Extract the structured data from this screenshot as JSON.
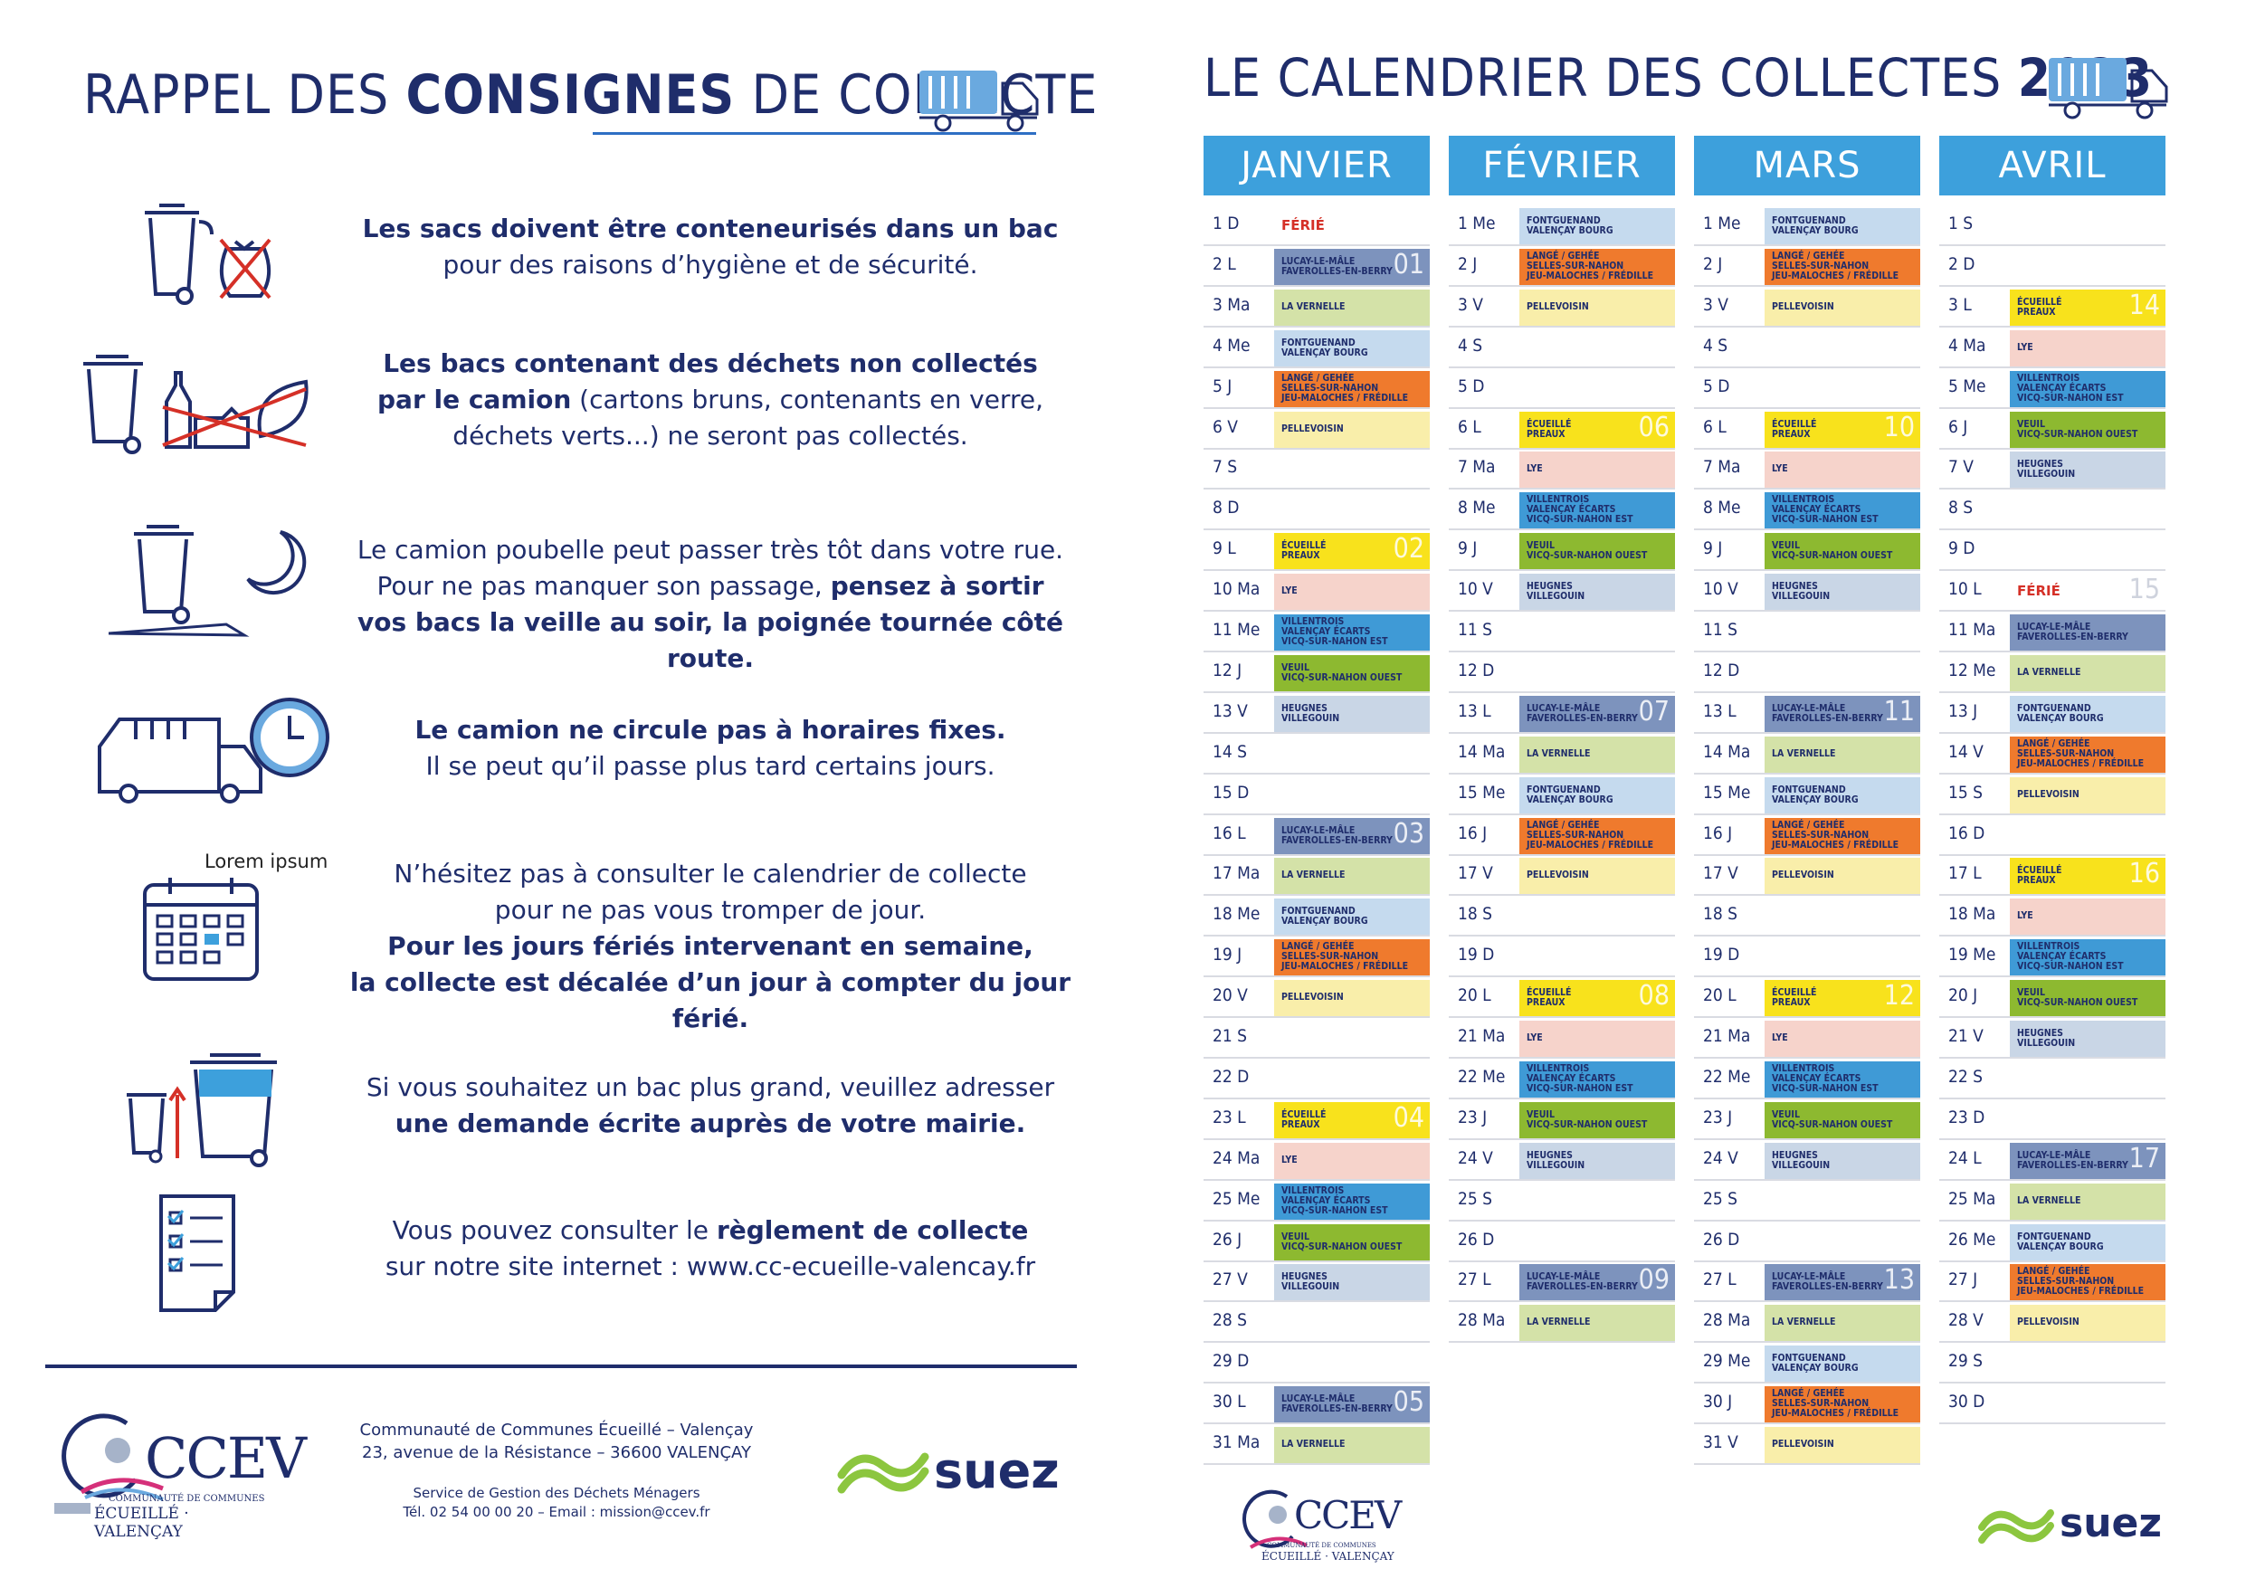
{
  "left": {
    "title_pre": "RAPPEL DES ",
    "title_bold": "CONSIGNES",
    "title_post": " DE COLLECTE",
    "rows": [
      {
        "l1b": "Les sacs doivent être conteneurisés dans un bac",
        "l2": "pour des raisons d’hygiène et de sécurité."
      },
      {
        "l1b": "Les bacs contenant des déchets non collectés",
        "l2b": "par le camion",
        "l2": " (cartons bruns, contenants en verre,",
        "l3": "déchets verts...) ne seront pas collectés."
      },
      {
        "l1": "Le camion poubelle peut passer très tôt dans votre rue.",
        "l2": "Pour ne pas manquer son passage, ",
        "l2b": "pensez à sortir",
        "l3b": "vos bacs la veille au soir, la poignée tournée côté route."
      },
      {
        "l1b": "Le camion ne circule pas à horaires fixes.",
        "l2": "Il se peut qu’il passe plus tard certains jours."
      },
      {
        "icon_label": "Lorem ipsum",
        "l1": "N’hésitez pas à consulter le calendrier de collecte",
        "l2": "pour ne pas vous tromper de jour.",
        "l3b": "Pour les jours fériés intervenant en semaine,",
        "l4b": "la collecte est décalée d’un jour à compter du jour férié."
      },
      {
        "l1": "Si vous souhaitez un bac plus grand, veuillez adresser",
        "l2b": "une demande écrite auprès de votre mairie."
      },
      {
        "l1": "Vous pouvez consulter le ",
        "l1b": "règlement de collecte",
        "l2": "sur notre site internet : www.cc-ecueille-valencay.fr"
      }
    ],
    "footer": {
      "addr1": "Communauté de Communes Écueillé – Valençay",
      "addr2": "23, avenue de la Résistance – 36600 VALENÇAY",
      "svc1": "Service de Gestion des Déchets Ménagers",
      "svc2": "Tél. 02 54 00 00 20 – Email : mission@ccev.fr"
    },
    "logo": {
      "letters": "CCEV",
      "sub1": "COMMUNAUTÉ DE COMMUNES",
      "sub2": "ÉCUEILLÉ · VALENÇAY"
    },
    "suez": "suez"
  },
  "right": {
    "title_pre": "LE CALENDRIER DES COLLECTES ",
    "title_year": "2023",
    "colors": {
      "lucay": "#7d93bd",
      "vernelle": "#d4e2a8",
      "font": "#c5daee",
      "lange": "#ef7a2d",
      "pelle": "#f9eeaa",
      "ecueille": "#f8e21c",
      "lye": "#f6d3cb",
      "villen": "#3f9ad6",
      "veuil": "#8db930",
      "heugnes": "#c9d6e6",
      "blank": "#ffffff"
    },
    "labels": {
      "lucay": "LUCAY-LE-MÂLE\nFAVEROLLES-EN-BERRY",
      "vernelle": "LA VERNELLE",
      "font": "FONTGUENAND\nVALENÇAY BOURG",
      "lange": "LANGÉ / GEHÉE\nSELLES-SUR-NAHON\nJEU-MALOCHES / FRÉDILLE",
      "pelle": "PELLEVOISIN",
      "ecueille": "ÉCUEILLÉ\nPREAUX",
      "lye": "LYE",
      "villen": "VILLENTROIS\nVALENÇAY ÉCARTS\nVICQ-SUR-NAHON EST",
      "veuil": "VEUIL\nVICQ-SUR-NAHON OUEST",
      "heugnes": "HEUGNES\nVILLEGOUIN"
    },
    "ferie_label": "FÉRIÉ",
    "months": [
      {
        "name": "JANVIER",
        "days": [
          [
            "1 D",
            "ferie",
            ""
          ],
          [
            "2 L",
            "lucay",
            "01"
          ],
          [
            "3 Ma",
            "vernelle",
            ""
          ],
          [
            "4 Me",
            "font",
            ""
          ],
          [
            "5 J",
            "lange",
            ""
          ],
          [
            "6 V",
            "pelle",
            ""
          ],
          [
            "7 S",
            "",
            ""
          ],
          [
            "8 D",
            "",
            ""
          ],
          [
            "9 L",
            "ecueille",
            "02"
          ],
          [
            "10 Ma",
            "lye",
            ""
          ],
          [
            "11 Me",
            "villen",
            ""
          ],
          [
            "12 J",
            "veuil",
            ""
          ],
          [
            "13 V",
            "heugnes",
            ""
          ],
          [
            "14 S",
            "",
            ""
          ],
          [
            "15 D",
            "",
            ""
          ],
          [
            "16 L",
            "lucay",
            "03"
          ],
          [
            "17 Ma",
            "vernelle",
            ""
          ],
          [
            "18 Me",
            "font",
            ""
          ],
          [
            "19 J",
            "lange",
            ""
          ],
          [
            "20 V",
            "pelle",
            ""
          ],
          [
            "21 S",
            "",
            ""
          ],
          [
            "22 D",
            "",
            ""
          ],
          [
            "23 L",
            "ecueille",
            "04"
          ],
          [
            "24 Ma",
            "lye",
            ""
          ],
          [
            "25 Me",
            "villen",
            ""
          ],
          [
            "26 J",
            "veuil",
            ""
          ],
          [
            "27 V",
            "heugnes",
            ""
          ],
          [
            "28 S",
            "",
            ""
          ],
          [
            "29 D",
            "",
            ""
          ],
          [
            "30 L",
            "lucay",
            "05"
          ],
          [
            "31 Ma",
            "vernelle",
            ""
          ]
        ]
      },
      {
        "name": "FÉVRIER",
        "days": [
          [
            "1 Me",
            "font",
            ""
          ],
          [
            "2 J",
            "lange",
            ""
          ],
          [
            "3 V",
            "pelle",
            ""
          ],
          [
            "4 S",
            "",
            ""
          ],
          [
            "5 D",
            "",
            ""
          ],
          [
            "6 L",
            "ecueille",
            "06"
          ],
          [
            "7 Ma",
            "lye",
            ""
          ],
          [
            "8 Me",
            "villen",
            ""
          ],
          [
            "9 J",
            "veuil",
            ""
          ],
          [
            "10 V",
            "heugnes",
            ""
          ],
          [
            "11 S",
            "",
            ""
          ],
          [
            "12 D",
            "",
            ""
          ],
          [
            "13 L",
            "lucay",
            "07"
          ],
          [
            "14 Ma",
            "vernelle",
            ""
          ],
          [
            "15 Me",
            "font",
            ""
          ],
          [
            "16 J",
            "lange",
            ""
          ],
          [
            "17 V",
            "pelle",
            ""
          ],
          [
            "18 S",
            "",
            ""
          ],
          [
            "19 D",
            "",
            ""
          ],
          [
            "20 L",
            "ecueille",
            "08"
          ],
          [
            "21 Ma",
            "lye",
            ""
          ],
          [
            "22 Me",
            "villen",
            ""
          ],
          [
            "23 J",
            "veuil",
            ""
          ],
          [
            "24 V",
            "heugnes",
            ""
          ],
          [
            "25 S",
            "",
            ""
          ],
          [
            "26 D",
            "",
            ""
          ],
          [
            "27 L",
            "lucay",
            "09"
          ],
          [
            "28 Ma",
            "vernelle",
            ""
          ]
        ]
      },
      {
        "name": "MARS",
        "days": [
          [
            "1 Me",
            "font",
            ""
          ],
          [
            "2 J",
            "lange",
            ""
          ],
          [
            "3 V",
            "pelle",
            ""
          ],
          [
            "4 S",
            "",
            ""
          ],
          [
            "5 D",
            "",
            ""
          ],
          [
            "6 L",
            "ecueille",
            "10"
          ],
          [
            "7 Ma",
            "lye",
            ""
          ],
          [
            "8 Me",
            "villen",
            ""
          ],
          [
            "9 J",
            "veuil",
            ""
          ],
          [
            "10 V",
            "heugnes",
            ""
          ],
          [
            "11 S",
            "",
            ""
          ],
          [
            "12 D",
            "",
            ""
          ],
          [
            "13 L",
            "lucay",
            "11"
          ],
          [
            "14 Ma",
            "vernelle",
            ""
          ],
          [
            "15 Me",
            "font",
            ""
          ],
          [
            "16 J",
            "lange",
            ""
          ],
          [
            "17 V",
            "pelle",
            ""
          ],
          [
            "18 S",
            "",
            ""
          ],
          [
            "19 D",
            "",
            ""
          ],
          [
            "20 L",
            "ecueille",
            "12"
          ],
          [
            "21 Ma",
            "lye",
            ""
          ],
          [
            "22 Me",
            "villen",
            ""
          ],
          [
            "23 J",
            "veuil",
            ""
          ],
          [
            "24 V",
            "heugnes",
            ""
          ],
          [
            "25 S",
            "",
            ""
          ],
          [
            "26 D",
            "",
            ""
          ],
          [
            "27 L",
            "lucay",
            "13"
          ],
          [
            "28 Ma",
            "vernelle",
            ""
          ],
          [
            "29 Me",
            "font",
            ""
          ],
          [
            "30 J",
            "lange",
            ""
          ],
          [
            "31 V",
            "pelle",
            ""
          ]
        ]
      },
      {
        "name": "AVRIL",
        "days": [
          [
            "1 S",
            "",
            ""
          ],
          [
            "2 D",
            "",
            ""
          ],
          [
            "3 L",
            "ecueille",
            "14"
          ],
          [
            "4 Ma",
            "lye",
            ""
          ],
          [
            "5 Me",
            "villen",
            ""
          ],
          [
            "6 J",
            "veuil",
            ""
          ],
          [
            "7 V",
            "heugnes",
            ""
          ],
          [
            "8 S",
            "",
            ""
          ],
          [
            "9 D",
            "",
            ""
          ],
          [
            "10 L",
            "ferie",
            "15"
          ],
          [
            "11 Ma",
            "lucay",
            ""
          ],
          [
            "12 Me",
            "vernelle",
            ""
          ],
          [
            "13 J",
            "font",
            ""
          ],
          [
            "14 V",
            "lange",
            ""
          ],
          [
            "15 S",
            "pelle",
            ""
          ],
          [
            "16 D",
            "",
            ""
          ],
          [
            "17 L",
            "ecueille",
            "16"
          ],
          [
            "18 Ma",
            "lye",
            ""
          ],
          [
            "19 Me",
            "villen",
            ""
          ],
          [
            "20 J",
            "veuil",
            ""
          ],
          [
            "21 V",
            "heugnes",
            ""
          ],
          [
            "22 S",
            "",
            ""
          ],
          [
            "23 D",
            "",
            ""
          ],
          [
            "24 L",
            "lucay",
            "17"
          ],
          [
            "25 Ma",
            "vernelle",
            ""
          ],
          [
            "26 Me",
            "font",
            ""
          ],
          [
            "27 J",
            "lange",
            ""
          ],
          [
            "28 V",
            "pelle",
            ""
          ],
          [
            "29 S",
            "",
            ""
          ],
          [
            "30 D",
            "",
            ""
          ]
        ]
      }
    ]
  }
}
